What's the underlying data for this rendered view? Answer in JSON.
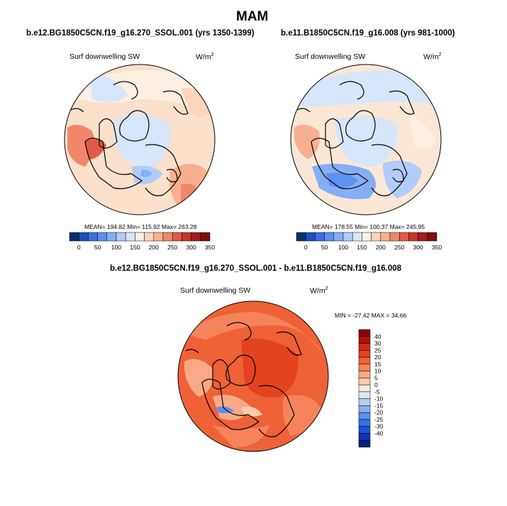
{
  "figure": {
    "title": "MAM"
  },
  "chart_data": [
    {
      "type": "heatmap",
      "title": "b.e12.BG1850C5CN.f19_g16.270_SSOL.001 (yrs 1350-1399)",
      "variable": "Surf downwelling SW",
      "units_base": "W/m",
      "units_exp": "2",
      "stats": "MEAN= 194.82  Min= 115.92  Max= 263.28",
      "mean": 194.82,
      "min": 115.92,
      "max": 263.28,
      "projection": "north-polar-stereographic",
      "colorbar": {
        "orientation": "horizontal",
        "levels": [
          0,
          50,
          100,
          150,
          200,
          250,
          300,
          350
        ],
        "tick_labels": [
          "0",
          "50",
          "100",
          "150",
          "200",
          "250",
          "300",
          "350"
        ],
        "colors": [
          "#08306b",
          "#1c4fbf",
          "#3a6fe0",
          "#5f8fef",
          "#86aef5",
          "#b0ccf8",
          "#d6e6fb",
          "#fdf0e3",
          "#fbd4b9",
          "#f7b08f",
          "#f0876a",
          "#e05a45",
          "#c9332a",
          "#a51c18",
          "#7f0e0e"
        ]
      }
    },
    {
      "type": "heatmap",
      "title": "b.e11.B1850C5CN.f19_g16.008 (yrs 981-1000)",
      "variable": "Surf downwelling SW",
      "units_base": "W/m",
      "units_exp": "2",
      "stats": "MEAN= 178.55  Min= 100.37  Max= 245.95",
      "mean": 178.55,
      "min": 100.37,
      "max": 245.95,
      "projection": "north-polar-stereographic",
      "colorbar": {
        "orientation": "horizontal",
        "levels": [
          0,
          50,
          100,
          150,
          200,
          250,
          300,
          350
        ],
        "tick_labels": [
          "0",
          "50",
          "100",
          "150",
          "200",
          "250",
          "300",
          "350"
        ],
        "colors": [
          "#08306b",
          "#1c4fbf",
          "#3a6fe0",
          "#5f8fef",
          "#86aef5",
          "#b0ccf8",
          "#d6e6fb",
          "#fdf0e3",
          "#fbd4b9",
          "#f7b08f",
          "#f0876a",
          "#e05a45",
          "#c9332a",
          "#a51c18",
          "#7f0e0e"
        ]
      }
    },
    {
      "type": "heatmap",
      "title": "b.e12.BG1850C5CN.f19_g16.270_SSOL.001 - b.e11.B1850C5CN.f19_g16.008",
      "variable": "Surf downwelling SW",
      "units_base": "W/m",
      "units_exp": "2",
      "stats": "MIN = -27.42 MAX =  34.66",
      "min": -27.42,
      "max": 34.66,
      "projection": "north-polar-stereographic",
      "colorbar": {
        "orientation": "vertical",
        "tick_labels": [
          "40",
          "30",
          "25",
          "20",
          "15",
          "10",
          "5",
          "0",
          "-5",
          "-10",
          "-15",
          "-20",
          "-25",
          "-30",
          "-40"
        ],
        "colors": [
          "#8b0000",
          "#b00f0a",
          "#cf2a14",
          "#e4431f",
          "#ef6137",
          "#f5845c",
          "#f9a985",
          "#fcccb0",
          "#fde9db",
          "#dbe7f7",
          "#b5cdf2",
          "#8aafec",
          "#5e8fe8",
          "#3670e6",
          "#1c50d9",
          "#0f35b3",
          "#08207f"
        ]
      }
    }
  ]
}
